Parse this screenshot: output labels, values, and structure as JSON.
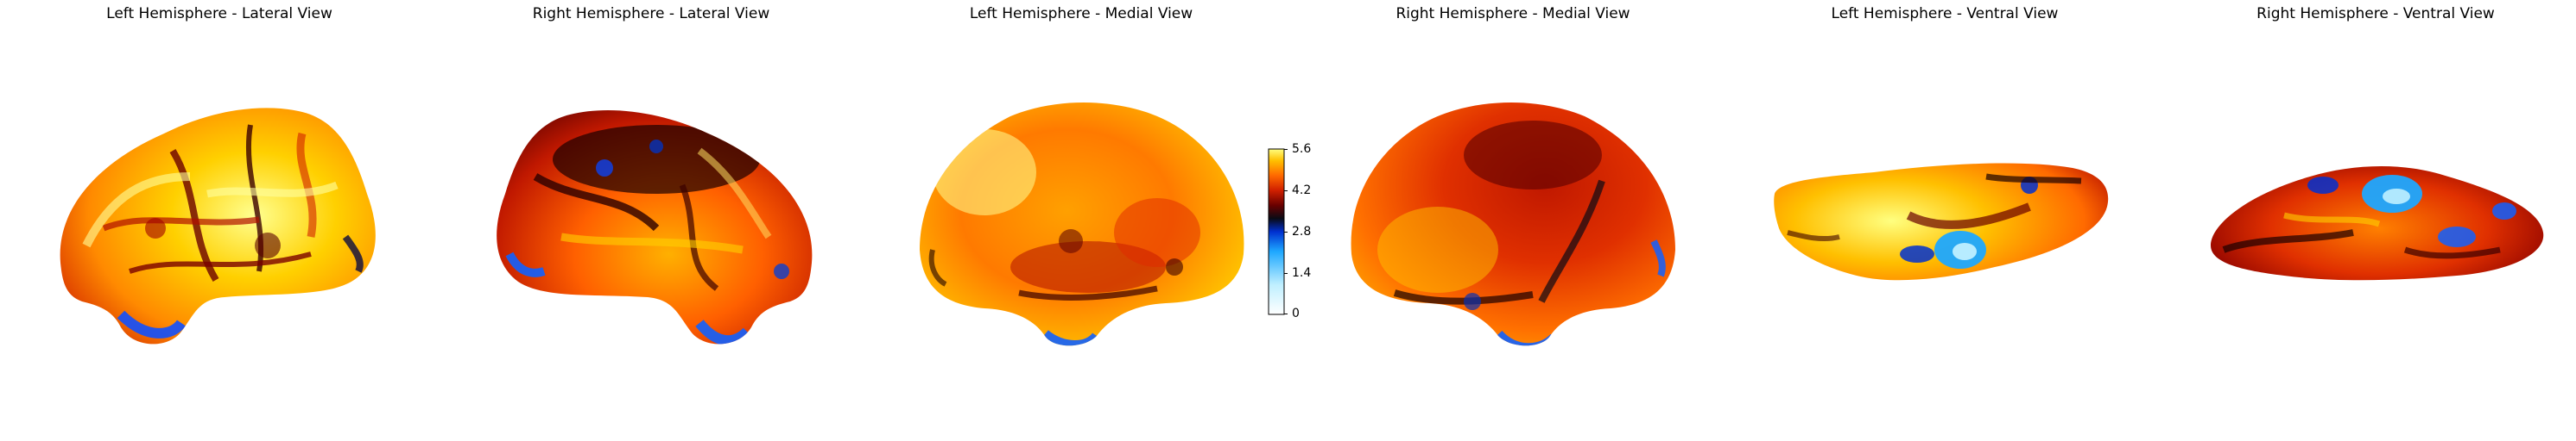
{
  "panels": [
    {
      "title": "Left Hemisphere - Lateral View"
    },
    {
      "title": "Right Hemisphere - Lateral View"
    },
    {
      "title": "Left Hemisphere - Medial View"
    },
    {
      "title": "Right Hemisphere - Medial View"
    },
    {
      "title": "Left Hemisphere - Ventral View"
    },
    {
      "title": "Right Hemisphere - Ventral View"
    }
  ],
  "colorbar": {
    "min": 0,
    "max": 5.6,
    "ticks": [
      "0",
      "1.4",
      "2.8",
      "4.2",
      "5.6"
    ],
    "colors": [
      "#ffffff",
      "#bfefff",
      "#1ea8ff",
      "#0030d0",
      "#0a0a14",
      "#6a0000",
      "#d02000",
      "#ff6a00",
      "#ffc000",
      "#ffff80"
    ]
  }
}
